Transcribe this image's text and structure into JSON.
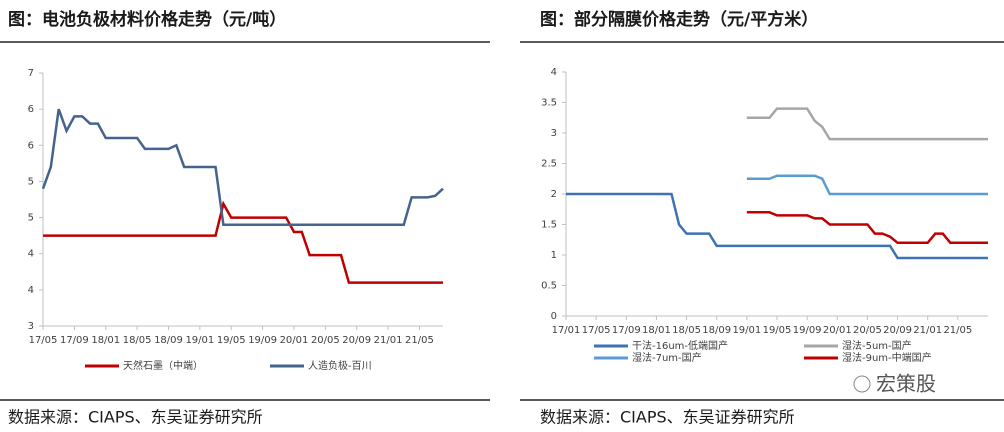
{
  "chart_data": [
    {
      "type": "line",
      "title": "图：电池负极材料价格走势（元/吨）",
      "source": "数据来源：CIAPS、东吴证券研究所",
      "categories": [
        "17/05",
        null,
        null,
        null,
        "17/09",
        null,
        null,
        null,
        "18/01",
        null,
        null,
        null,
        "18/05",
        null,
        null,
        null,
        "18/09",
        null,
        null,
        null,
        "19/01",
        null,
        null,
        null,
        "19/05",
        null,
        null,
        null,
        "19/09",
        null,
        null,
        null,
        "20/01",
        null,
        null,
        null,
        "20/05",
        null,
        null,
        null,
        "20/09",
        null,
        null,
        null,
        "21/01",
        null,
        null,
        null,
        "21/05",
        null,
        null,
        null
      ],
      "series": [
        {
          "name": "天然石墨（中端）",
          "color": "#c00000",
          "values": [
            4.25,
            4.25,
            4.25,
            4.25,
            4.25,
            4.25,
            4.25,
            4.25,
            4.25,
            4.25,
            4.25,
            4.25,
            4.25,
            4.25,
            4.25,
            4.25,
            4.25,
            4.25,
            4.25,
            4.25,
            4.25,
            4.25,
            4.25,
            4.69,
            4.5,
            4.5,
            4.5,
            4.5,
            4.5,
            4.5,
            4.5,
            4.5,
            4.3,
            4.3,
            3.98,
            3.98,
            3.98,
            3.98,
            3.98,
            3.6,
            3.6,
            3.6,
            3.6,
            3.6,
            3.6,
            3.6,
            3.6,
            3.6,
            3.6,
            3.6,
            3.6,
            3.6
          ]
        },
        {
          "name": "人造负极-百川",
          "color": "#44648e",
          "values": [
            4.9,
            5.2,
            6.0,
            5.7,
            5.9,
            5.9,
            5.8,
            5.8,
            5.6,
            5.6,
            5.6,
            5.6,
            5.6,
            5.45,
            5.45,
            5.45,
            5.45,
            5.5,
            5.2,
            5.2,
            5.2,
            5.2,
            5.2,
            4.4,
            4.4,
            4.4,
            4.4,
            4.4,
            4.4,
            4.4,
            4.4,
            4.4,
            4.4,
            4.4,
            4.4,
            4.4,
            4.4,
            4.4,
            4.4,
            4.4,
            4.4,
            4.4,
            4.4,
            4.4,
            4.4,
            4.4,
            4.4,
            4.78,
            4.78,
            4.78,
            4.8,
            4.9
          ]
        }
      ],
      "ylim": [
        3,
        6.5
      ],
      "yticks": [
        3,
        {
          "value": 3.5,
          "label": "4"
        },
        4,
        {
          "value": 4.5,
          "label": "5"
        },
        5,
        {
          "value": 5.5,
          "label": "6"
        },
        6,
        {
          "value": 6.5,
          "label": "7"
        }
      ],
      "legend": "bottom"
    },
    {
      "type": "line",
      "title": "图：部分隔膜价格走势（元/平方米）",
      "source": "数据来源：CIAPS、东吴证券研究所",
      "categories": [
        "17/01",
        null,
        null,
        null,
        "17/05",
        null,
        null,
        null,
        "17/09",
        null,
        null,
        null,
        "18/01",
        null,
        null,
        null,
        "18/05",
        null,
        null,
        null,
        "18/09",
        null,
        null,
        null,
        "19/01",
        null,
        null,
        null,
        "19/05",
        null,
        null,
        null,
        "19/09",
        null,
        null,
        null,
        "20/01",
        null,
        null,
        null,
        "20/05",
        null,
        null,
        null,
        "20/09",
        null,
        null,
        null,
        "21/01",
        null,
        null,
        null,
        "21/05",
        null,
        null,
        null,
        null
      ],
      "series": [
        {
          "name": "干法-16um-低端国产",
          "color": "#3d72b4",
          "values": [
            2.0,
            2.0,
            2.0,
            2.0,
            2.0,
            2.0,
            2.0,
            2.0,
            2.0,
            2.0,
            2.0,
            2.0,
            2.0,
            2.0,
            2.0,
            1.5,
            1.35,
            1.35,
            1.35,
            1.35,
            1.15,
            1.15,
            1.15,
            1.15,
            1.15,
            1.15,
            1.15,
            1.15,
            1.15,
            1.15,
            1.15,
            1.15,
            1.15,
            1.15,
            1.15,
            1.15,
            1.15,
            1.15,
            1.15,
            1.15,
            1.15,
            1.15,
            1.15,
            1.15,
            0.95,
            0.95,
            0.95,
            0.95,
            0.95,
            0.95,
            0.95,
            0.95,
            0.95,
            0.95,
            0.95,
            0.95,
            0.95
          ]
        },
        {
          "name": "湿法-5um-国产",
          "color": "#a6a6a6",
          "values": [
            null,
            null,
            null,
            null,
            null,
            null,
            null,
            null,
            null,
            null,
            null,
            null,
            null,
            null,
            null,
            null,
            null,
            null,
            null,
            null,
            null,
            null,
            null,
            null,
            3.25,
            3.25,
            3.25,
            3.25,
            3.4,
            3.4,
            3.4,
            3.4,
            3.4,
            3.2,
            3.1,
            2.9,
            2.9,
            2.9,
            2.9,
            2.9,
            2.9,
            2.9,
            2.9,
            2.9,
            2.9,
            2.9,
            2.9,
            2.9,
            2.9,
            2.9,
            2.9,
            2.9,
            2.9,
            2.9,
            2.9,
            2.9,
            2.9
          ]
        },
        {
          "name": "湿法-7um-国产",
          "color": "#5b9bd5",
          "values": [
            null,
            null,
            null,
            null,
            null,
            null,
            null,
            null,
            null,
            null,
            null,
            null,
            null,
            null,
            null,
            null,
            null,
            null,
            null,
            null,
            null,
            null,
            null,
            null,
            2.25,
            2.25,
            2.25,
            2.25,
            2.3,
            2.3,
            2.3,
            2.3,
            2.3,
            2.3,
            2.25,
            2.0,
            2.0,
            2.0,
            2.0,
            2.0,
            2.0,
            2.0,
            2.0,
            2.0,
            2.0,
            2.0,
            2.0,
            2.0,
            2.0,
            2.0,
            2.0,
            2.0,
            2.0,
            2.0,
            2.0,
            2.0,
            2.0
          ]
        },
        {
          "name": "湿法-9um-中端国产",
          "color": "#c00000",
          "values": [
            null,
            null,
            null,
            null,
            null,
            null,
            null,
            null,
            null,
            null,
            null,
            null,
            null,
            null,
            null,
            null,
            null,
            null,
            null,
            null,
            null,
            null,
            null,
            null,
            1.7,
            1.7,
            1.7,
            1.7,
            1.65,
            1.65,
            1.65,
            1.65,
            1.65,
            1.6,
            1.6,
            1.5,
            1.5,
            1.5,
            1.5,
            1.5,
            1.5,
            1.35,
            1.35,
            1.3,
            1.2,
            1.2,
            1.2,
            1.2,
            1.2,
            1.35,
            1.35,
            1.2,
            1.2,
            1.2,
            1.2,
            1.2,
            1.2
          ]
        }
      ],
      "ylim": [
        0,
        4
      ],
      "yticks": [
        0,
        0.5,
        1,
        1.5,
        2,
        2.5,
        3,
        3.5,
        4
      ],
      "legend": "bottom"
    }
  ],
  "watermark": "宏策股"
}
